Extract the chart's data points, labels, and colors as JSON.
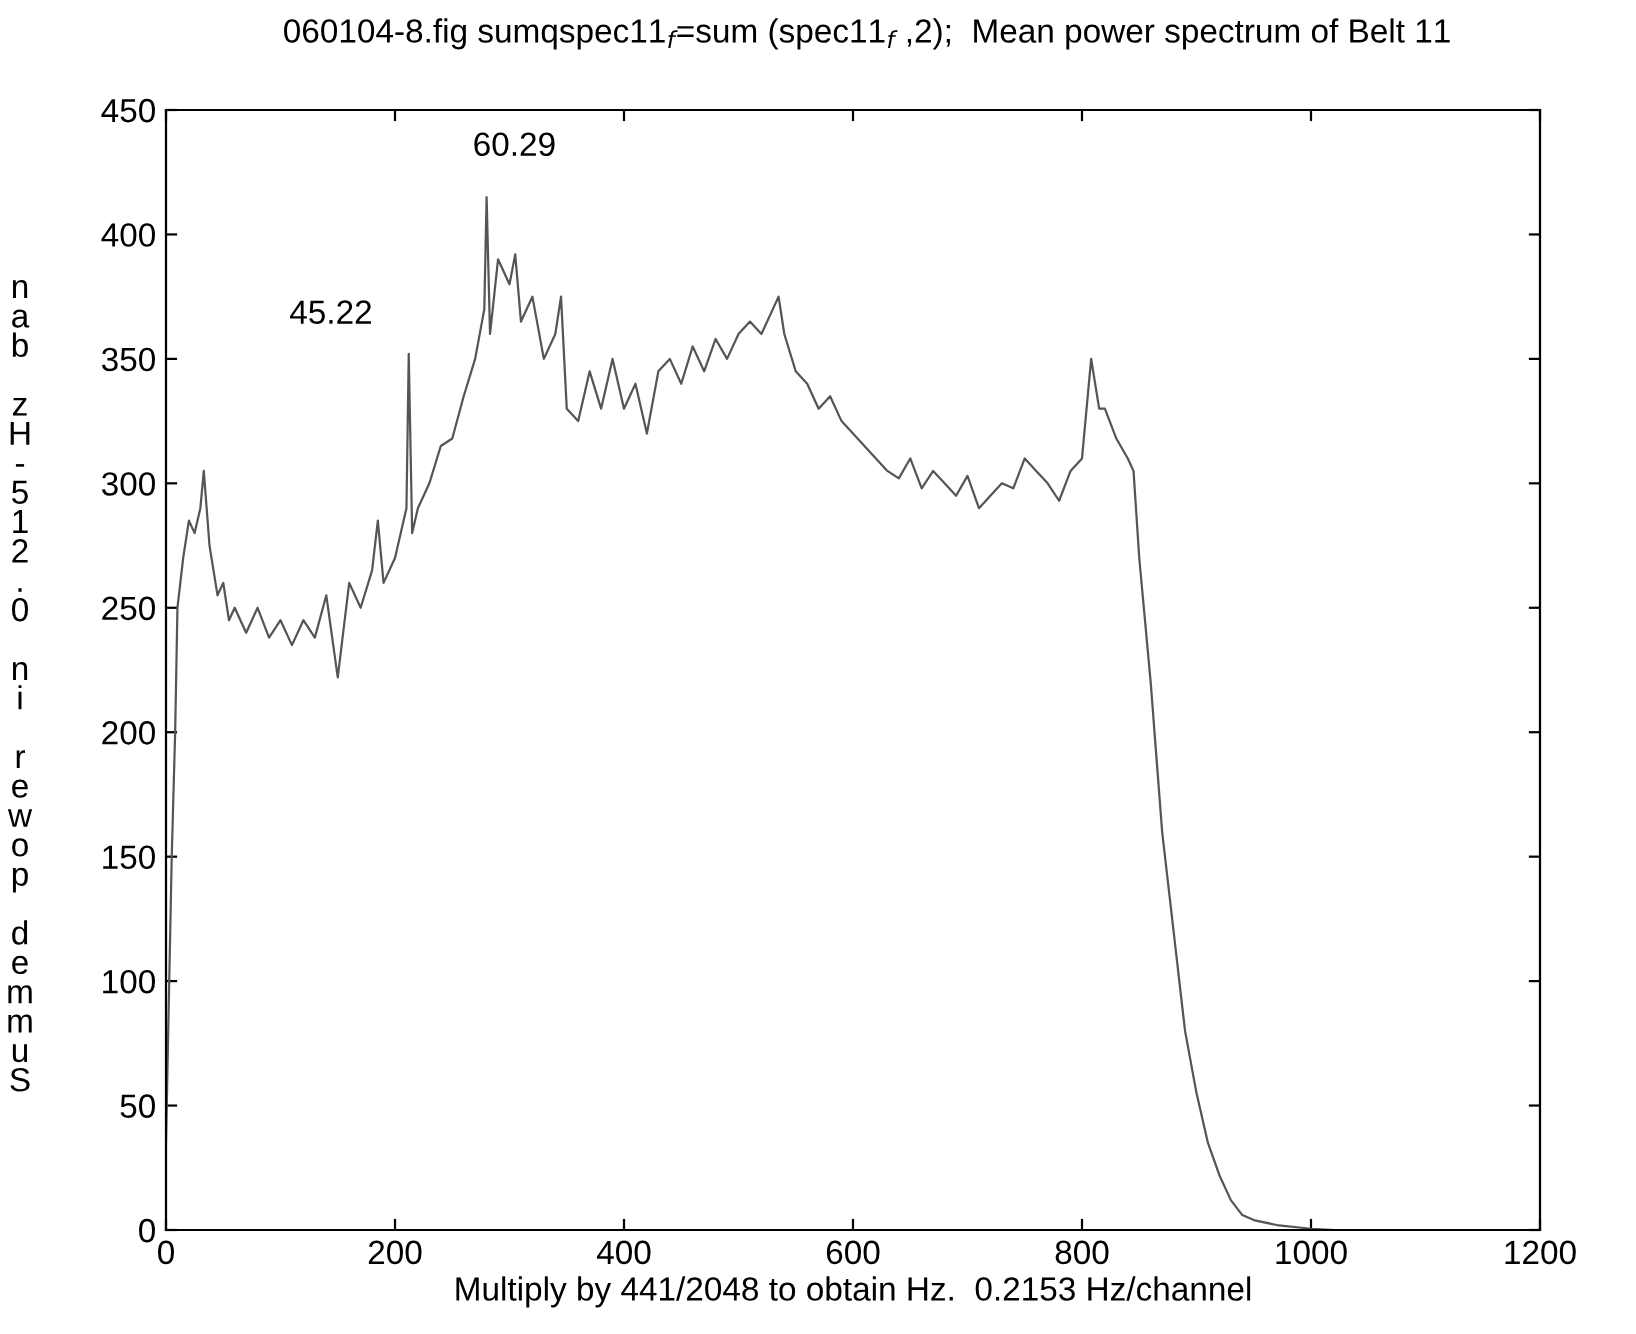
{
  "chart_data": {
    "type": "line",
    "title": "060104-8.fig sumqspec11$_{f}$=sum (spec11$_{f}$ ,2);  Mean power spectrum of Belt 11",
    "xlabel": "Multiply by 441/2048 to obtain Hz.  0.2153 Hz/channel",
    "ylabel": "nab zH-512.0 ni rewop demmuS",
    "annotations": [
      {
        "text": "45.22",
        "x": 212,
        "y": 352
      },
      {
        "text": "60.29",
        "x": 280,
        "y": 415
      }
    ],
    "series": [
      {
        "color": "#555555",
        "x": [
          0,
          5,
          8,
          10,
          15,
          20,
          25,
          30,
          33,
          38,
          45,
          50,
          55,
          60,
          70,
          80,
          90,
          100,
          110,
          120,
          130,
          140,
          150,
          160,
          170,
          180,
          185,
          190,
          200,
          210,
          212,
          215,
          220,
          230,
          240,
          250,
          260,
          270,
          278,
          280,
          283,
          290,
          300,
          305,
          310,
          320,
          330,
          340,
          345,
          350,
          360,
          370,
          380,
          390,
          400,
          410,
          420,
          430,
          440,
          450,
          460,
          470,
          480,
          490,
          500,
          510,
          520,
          530,
          535,
          540,
          550,
          560,
          570,
          580,
          590,
          600,
          610,
          620,
          630,
          640,
          650,
          660,
          670,
          680,
          690,
          700,
          710,
          720,
          730,
          740,
          750,
          760,
          770,
          780,
          790,
          800,
          808,
          815,
          820,
          830,
          840,
          845,
          850,
          860,
          870,
          880,
          890,
          900,
          910,
          920,
          930,
          940,
          950,
          970,
          1000,
          1020
        ],
        "values": [
          35,
          150,
          200,
          250,
          270,
          285,
          280,
          290,
          305,
          275,
          255,
          260,
          245,
          250,
          240,
          250,
          238,
          245,
          235,
          245,
          238,
          255,
          222,
          260,
          250,
          265,
          285,
          260,
          270,
          290,
          352,
          280,
          290,
          300,
          315,
          318,
          335,
          350,
          370,
          415,
          360,
          390,
          380,
          392,
          365,
          375,
          350,
          360,
          375,
          330,
          325,
          345,
          330,
          350,
          330,
          340,
          320,
          345,
          350,
          340,
          355,
          345,
          358,
          350,
          360,
          365,
          360,
          370,
          375,
          360,
          345,
          340,
          330,
          335,
          325,
          320,
          315,
          310,
          305,
          302,
          310,
          298,
          305,
          300,
          295,
          303,
          290,
          295,
          300,
          298,
          310,
          305,
          300,
          293,
          305,
          310,
          350,
          330,
          330,
          318,
          310,
          305,
          270,
          220,
          160,
          120,
          80,
          55,
          35,
          22,
          12,
          6,
          4,
          2,
          0.5,
          0
        ]
      }
    ],
    "xlim": [
      0,
      1200
    ],
    "xticks": [
      0,
      200,
      400,
      600,
      800,
      1000,
      1200
    ],
    "ylim": [
      0,
      450
    ],
    "yticks": [
      0,
      50,
      100,
      150,
      200,
      250,
      300,
      350,
      400,
      450
    ],
    "grid": false,
    "legend": false,
    "marker": "none",
    "line_style": "solid"
  }
}
